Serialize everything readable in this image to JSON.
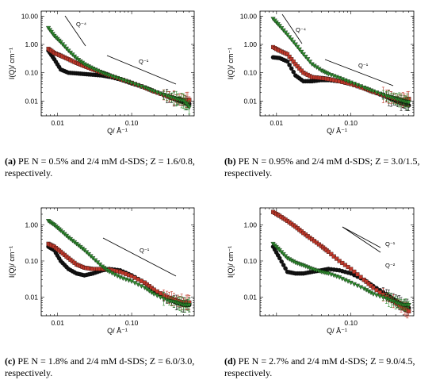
{
  "captions": [
    {
      "tag": "(a)",
      "text": "PE N = 0.5% and 2/4 mM d-SDS; Z = 1.6/0.8, respectively."
    },
    {
      "tag": "(b)",
      "text": "PE N = 0.95% and 2/4 mM d-SDS; Z = 3.0/1.5, respectively."
    },
    {
      "tag": "(c)",
      "text": "PE N = 1.8% and 2/4 mM d-SDS; Z = 6.0/3.0, respectively."
    },
    {
      "tag": "(d)",
      "text": "PE N = 2.7% and 2/4 mM d-SDS; Z = 9.0/4.5, respectively."
    }
  ],
  "colors": {
    "black": "#111111",
    "red": "#c0392b",
    "green": "#2e8b2e",
    "axis": "#000000"
  },
  "chart_data": [
    {
      "type": "scatter",
      "panel": "a",
      "xlabel": "Q/ Å⁻¹",
      "ylabel": "I(Q)/ cm⁻¹",
      "xscale": "log",
      "yscale": "log",
      "xlim": [
        0.006,
        0.7
      ],
      "ylim": [
        0.003,
        15
      ],
      "xticks": [
        0.01,
        0.1
      ],
      "xticklabels": [
        "0.01",
        "0.10"
      ],
      "yticks": [
        0.01,
        0.1,
        1,
        10
      ],
      "yticklabels": [
        "0.01",
        "0.10",
        "1.00",
        "10.00"
      ],
      "annotations": [
        {
          "label": "Q⁻⁴"
        },
        {
          "label": "Q⁻¹"
        }
      ],
      "series": [
        {
          "color": "black",
          "marker": "circle",
          "x": [
            0.0075,
            0.009,
            0.011,
            0.014,
            0.018,
            0.023,
            0.03,
            0.04,
            0.05,
            0.07,
            0.1,
            0.15,
            0.2,
            0.3,
            0.4,
            0.5,
            0.6
          ],
          "y": [
            0.6,
            0.3,
            0.13,
            0.1,
            0.095,
            0.09,
            0.085,
            0.08,
            0.072,
            0.058,
            0.042,
            0.03,
            0.022,
            0.015,
            0.011,
            0.009,
            0.008
          ]
        },
        {
          "color": "red",
          "marker": "square",
          "x": [
            0.0075,
            0.009,
            0.011,
            0.014,
            0.018,
            0.023,
            0.03,
            0.04,
            0.05,
            0.07,
            0.1,
            0.15,
            0.2,
            0.3,
            0.4,
            0.5,
            0.6
          ],
          "y": [
            0.7,
            0.5,
            0.4,
            0.3,
            0.22,
            0.17,
            0.13,
            0.1,
            0.08,
            0.06,
            0.044,
            0.03,
            0.022,
            0.015,
            0.012,
            0.011,
            0.011
          ]
        },
        {
          "color": "green",
          "marker": "triangle-down",
          "x": [
            0.0075,
            0.009,
            0.011,
            0.014,
            0.018,
            0.023,
            0.03,
            0.04,
            0.05,
            0.07,
            0.1,
            0.15,
            0.2,
            0.3,
            0.4,
            0.5,
            0.6
          ],
          "y": [
            3.8,
            2.0,
            1.2,
            0.6,
            0.32,
            0.2,
            0.14,
            0.1,
            0.08,
            0.06,
            0.043,
            0.03,
            0.022,
            0.015,
            0.012,
            0.01,
            0.006
          ]
        }
      ]
    },
    {
      "type": "scatter",
      "panel": "b",
      "xlabel": "Q/ Å⁻¹",
      "ylabel": "I(Q)/ cm⁻¹",
      "xscale": "log",
      "yscale": "log",
      "xlim": [
        0.006,
        0.7
      ],
      "ylim": [
        0.003,
        15
      ],
      "xticks": [
        0.01,
        0.1
      ],
      "xticklabels": [
        "0.01",
        "0.10"
      ],
      "yticks": [
        0.01,
        0.1,
        1,
        10
      ],
      "yticklabels": [
        "0.01",
        "0.10",
        "1.00",
        "10.00"
      ],
      "annotations": [
        {
          "label": "Q⁻⁴"
        },
        {
          "label": "Q⁻¹"
        }
      ],
      "series": [
        {
          "color": "black",
          "marker": "circle",
          "x": [
            0.009,
            0.011,
            0.014,
            0.018,
            0.023,
            0.03,
            0.04,
            0.05,
            0.07,
            0.1,
            0.15,
            0.2,
            0.3,
            0.4,
            0.5,
            0.6
          ],
          "y": [
            0.35,
            0.33,
            0.25,
            0.08,
            0.05,
            0.05,
            0.055,
            0.055,
            0.05,
            0.04,
            0.028,
            0.021,
            0.014,
            0.01,
            0.008,
            0.007
          ]
        },
        {
          "color": "red",
          "marker": "square",
          "x": [
            0.009,
            0.011,
            0.014,
            0.018,
            0.023,
            0.03,
            0.04,
            0.05,
            0.07,
            0.1,
            0.15,
            0.2,
            0.3,
            0.4,
            0.5,
            0.6
          ],
          "y": [
            0.8,
            0.6,
            0.45,
            0.2,
            0.1,
            0.07,
            0.065,
            0.06,
            0.05,
            0.04,
            0.028,
            0.021,
            0.015,
            0.012,
            0.011,
            0.012
          ]
        },
        {
          "color": "green",
          "marker": "triangle-down",
          "x": [
            0.009,
            0.011,
            0.014,
            0.018,
            0.023,
            0.03,
            0.04,
            0.05,
            0.07,
            0.1,
            0.15,
            0.2,
            0.3,
            0.4,
            0.5,
            0.6
          ],
          "y": [
            8.0,
            4.5,
            2.2,
            1.0,
            0.45,
            0.2,
            0.12,
            0.09,
            0.065,
            0.045,
            0.03,
            0.022,
            0.015,
            0.012,
            0.01,
            0.009
          ]
        }
      ]
    },
    {
      "type": "scatter",
      "panel": "c",
      "xlabel": "Q/ Å⁻¹",
      "ylabel": "I(Q)/ cm⁻¹",
      "xscale": "log",
      "yscale": "log",
      "xlim": [
        0.006,
        0.7
      ],
      "ylim": [
        0.003,
        3
      ],
      "xticks": [
        0.01,
        0.1
      ],
      "xticklabels": [
        "0.01",
        "0.10"
      ],
      "yticks": [
        0.01,
        0.1,
        1
      ],
      "yticklabels": [
        "0.01",
        "0.10",
        "1.00"
      ],
      "annotations": [
        {
          "label": "Q⁻¹"
        }
      ],
      "series": [
        {
          "color": "black",
          "marker": "circle",
          "x": [
            0.0075,
            0.009,
            0.011,
            0.014,
            0.018,
            0.023,
            0.03,
            0.04,
            0.05,
            0.07,
            0.1,
            0.15,
            0.2,
            0.3,
            0.4,
            0.5,
            0.6
          ],
          "y": [
            0.25,
            0.2,
            0.1,
            0.06,
            0.045,
            0.04,
            0.045,
            0.055,
            0.06,
            0.055,
            0.04,
            0.025,
            0.015,
            0.009,
            0.007,
            0.006,
            0.006
          ]
        },
        {
          "color": "red",
          "marker": "square",
          "x": [
            0.0075,
            0.009,
            0.011,
            0.014,
            0.018,
            0.023,
            0.03,
            0.04,
            0.05,
            0.07,
            0.1,
            0.15,
            0.2,
            0.3,
            0.4,
            0.5,
            0.6
          ],
          "y": [
            0.3,
            0.25,
            0.18,
            0.12,
            0.08,
            0.065,
            0.06,
            0.06,
            0.058,
            0.05,
            0.038,
            0.025,
            0.016,
            0.01,
            0.008,
            0.007,
            0.007
          ]
        },
        {
          "color": "green",
          "marker": "triangle-down",
          "x": [
            0.0075,
            0.009,
            0.011,
            0.014,
            0.018,
            0.023,
            0.03,
            0.04,
            0.05,
            0.07,
            0.1,
            0.15,
            0.2,
            0.3,
            0.4,
            0.5,
            0.6
          ],
          "y": [
            1.3,
            1.0,
            0.7,
            0.45,
            0.3,
            0.2,
            0.12,
            0.07,
            0.05,
            0.035,
            0.027,
            0.018,
            0.012,
            0.008,
            0.007,
            0.006,
            0.006
          ]
        }
      ]
    },
    {
      "type": "scatter",
      "panel": "d",
      "xlabel": "Q/ Å⁻¹",
      "ylabel": "I(Q)/ cm⁻¹",
      "xscale": "log",
      "yscale": "log",
      "xlim": [
        0.006,
        0.7
      ],
      "ylim": [
        0.003,
        3
      ],
      "xticks": [
        0.1
      ],
      "xticklabels": [
        "0.10"
      ],
      "yticks": [
        0.01,
        0.1,
        1
      ],
      "yticklabels": [
        "0.01",
        "0.10",
        "1.00"
      ],
      "annotations": [
        {
          "label": "Q⁻¹"
        },
        {
          "label": "Q⁻²"
        }
      ],
      "series": [
        {
          "color": "black",
          "marker": "circle",
          "x": [
            0.009,
            0.011,
            0.014,
            0.018,
            0.023,
            0.03,
            0.04,
            0.05,
            0.07,
            0.1,
            0.15,
            0.2,
            0.3,
            0.4,
            0.5,
            0.6
          ],
          "y": [
            0.25,
            0.12,
            0.05,
            0.045,
            0.045,
            0.05,
            0.055,
            0.06,
            0.055,
            0.045,
            0.03,
            0.02,
            0.012,
            0.008,
            0.006,
            0.005
          ]
        },
        {
          "color": "red",
          "marker": "square",
          "x": [
            0.009,
            0.011,
            0.014,
            0.018,
            0.023,
            0.03,
            0.04,
            0.05,
            0.07,
            0.1,
            0.15,
            0.2,
            0.3,
            0.4,
            0.5,
            0.6
          ],
          "y": [
            2.3,
            1.8,
            1.3,
            0.9,
            0.6,
            0.4,
            0.26,
            0.18,
            0.1,
            0.06,
            0.03,
            0.018,
            0.01,
            0.007,
            0.005,
            0.004
          ]
        },
        {
          "color": "green",
          "marker": "triangle-down",
          "x": [
            0.009,
            0.011,
            0.014,
            0.018,
            0.023,
            0.03,
            0.04,
            0.05,
            0.07,
            0.1,
            0.15,
            0.2,
            0.3,
            0.4,
            0.5,
            0.6
          ],
          "y": [
            0.3,
            0.2,
            0.12,
            0.09,
            0.075,
            0.06,
            0.05,
            0.045,
            0.035,
            0.025,
            0.017,
            0.012,
            0.009,
            0.007,
            0.006,
            0.006
          ]
        }
      ]
    }
  ]
}
